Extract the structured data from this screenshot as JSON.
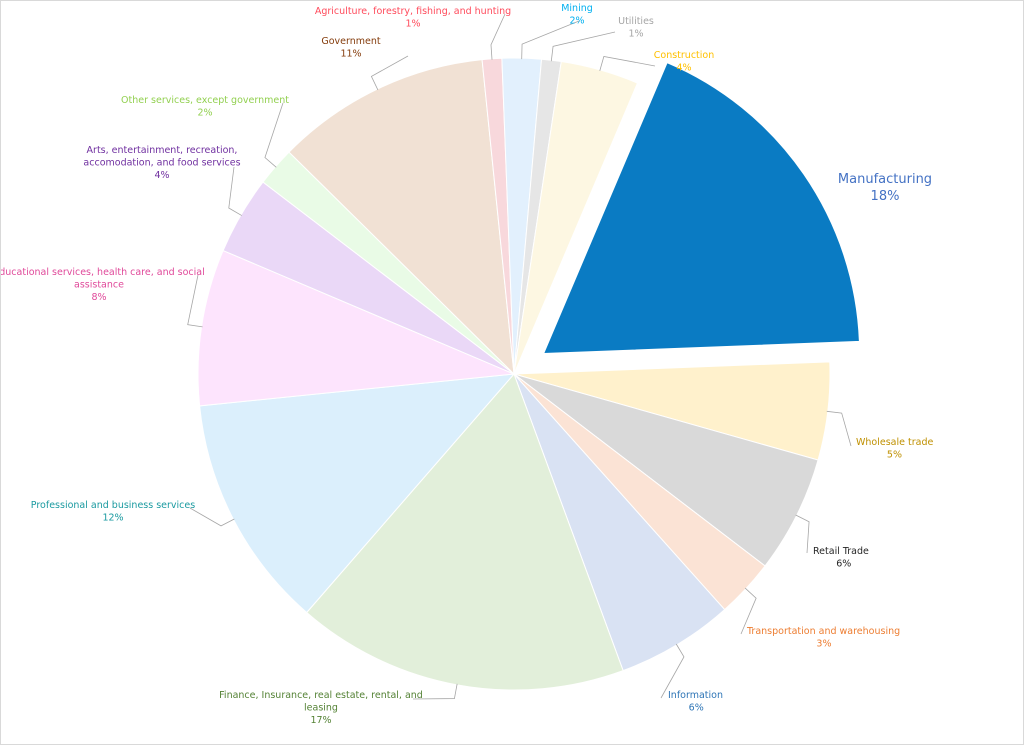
{
  "chart_data": {
    "type": "pie",
    "title": "",
    "series": [
      {
        "label": "Manufacturing",
        "percent": "18%",
        "value": 18,
        "color": "#0a7bc3",
        "label_color": "#4472c4",
        "exploded": true
      },
      {
        "label": "Wholesale trade",
        "percent": "5%",
        "value": 5,
        "color": "#fff1cc",
        "label_color": "#bf9000"
      },
      {
        "label": "Retail Trade",
        "percent": "6%",
        "value": 6,
        "color": "#d9d9d9",
        "label_color": "#262626"
      },
      {
        "label": "Transportation and warehousing",
        "percent": "3%",
        "value": 3,
        "color": "#fbe3d5",
        "label_color": "#ed7d31"
      },
      {
        "label": "Information",
        "percent": "6%",
        "value": 6,
        "color": "#d9e2f3",
        "label_color": "#2e75b6"
      },
      {
        "label": "Finance, Insurance, real estate, rental, and leasing",
        "percent": "17%",
        "value": 17,
        "color": "#e2efda",
        "label_color": "#548235"
      },
      {
        "label": "Professional and business services",
        "percent": "12%",
        "value": 12,
        "color": "#dbeffc",
        "label_color": "#1a9aa0"
      },
      {
        "label": "Educational services, health care, and social assistance",
        "percent": "8%",
        "value": 8,
        "color": "#fde4fd",
        "label_color": "#e0499a"
      },
      {
        "label": "Arts, entertainment, recreation, accomodation, and food services",
        "percent": "4%",
        "value": 4,
        "color": "#ead8f7",
        "label_color": "#7030a0"
      },
      {
        "label": "Other services, except government",
        "percent": "2%",
        "value": 2,
        "color": "#e9fbe6",
        "label_color": "#92d050"
      },
      {
        "label": "Government",
        "percent": "11%",
        "value": 11,
        "color": "#f1e1d4",
        "label_color": "#843c0c"
      },
      {
        "label": "Agriculture, forestry, fishing, and hunting",
        "percent": "1%",
        "value": 1,
        "color": "#f8d8dc",
        "label_color": "#ff4b5c"
      },
      {
        "label": "Mining",
        "percent": "2%",
        "value": 2,
        "color": "#e2f0fd",
        "label_color": "#00b0f0"
      },
      {
        "label": "Utilities",
        "percent": "1%",
        "value": 1,
        "color": "#e6e6e6",
        "label_color": "#a6a6a6"
      },
      {
        "label": "Construction",
        "percent": "4%",
        "value": 4,
        "color": "#fdf7e2",
        "label_color": "#ffc000"
      }
    ]
  }
}
